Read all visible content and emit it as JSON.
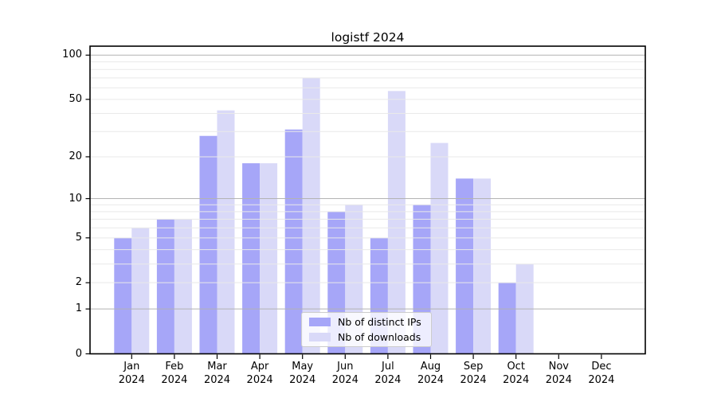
{
  "title": "logistf 2024",
  "chart_data": {
    "type": "bar",
    "title": "logistf 2024",
    "xlabel": "",
    "ylabel": "",
    "yscale": "log1p",
    "ylim": [
      0,
      115
    ],
    "ytick_values": [
      0,
      1,
      2,
      5,
      10,
      20,
      50,
      100
    ],
    "ytick_labels": [
      "0",
      "1",
      "2",
      "5",
      "10",
      "20",
      "50",
      "100"
    ],
    "categories": [
      "Jan 2024",
      "Feb 2024",
      "Mar 2024",
      "Apr 2024",
      "May 2024",
      "Jun 2024",
      "Jul 2024",
      "Aug 2024",
      "Sep 2024",
      "Oct 2024",
      "Nov 2024",
      "Dec 2024"
    ],
    "series": [
      {
        "name": "Nb of distinct IPs",
        "color": "#a6a6f8",
        "values": [
          5,
          7,
          28,
          18,
          31,
          8,
          5,
          9,
          14,
          2,
          0,
          0
        ]
      },
      {
        "name": "Nb of downloads",
        "color": "#d9d9f8",
        "values": [
          6,
          7,
          42,
          18,
          70,
          9,
          57,
          25,
          14,
          3,
          0,
          0
        ]
      }
    ],
    "grid": {
      "major_values": [
        1,
        10,
        100
      ],
      "minor_values": [
        2,
        3,
        4,
        5,
        6,
        7,
        8,
        9,
        20,
        30,
        40,
        50,
        60,
        70,
        80,
        90
      ],
      "major_color": "#b3b3b3",
      "minor_color": "#e9e9e9"
    },
    "legend": {
      "position": "lower center",
      "entries": [
        "Nb of distinct IPs",
        "Nb of downloads"
      ]
    },
    "spine_color": "#000000",
    "tick_color": "#000000"
  }
}
